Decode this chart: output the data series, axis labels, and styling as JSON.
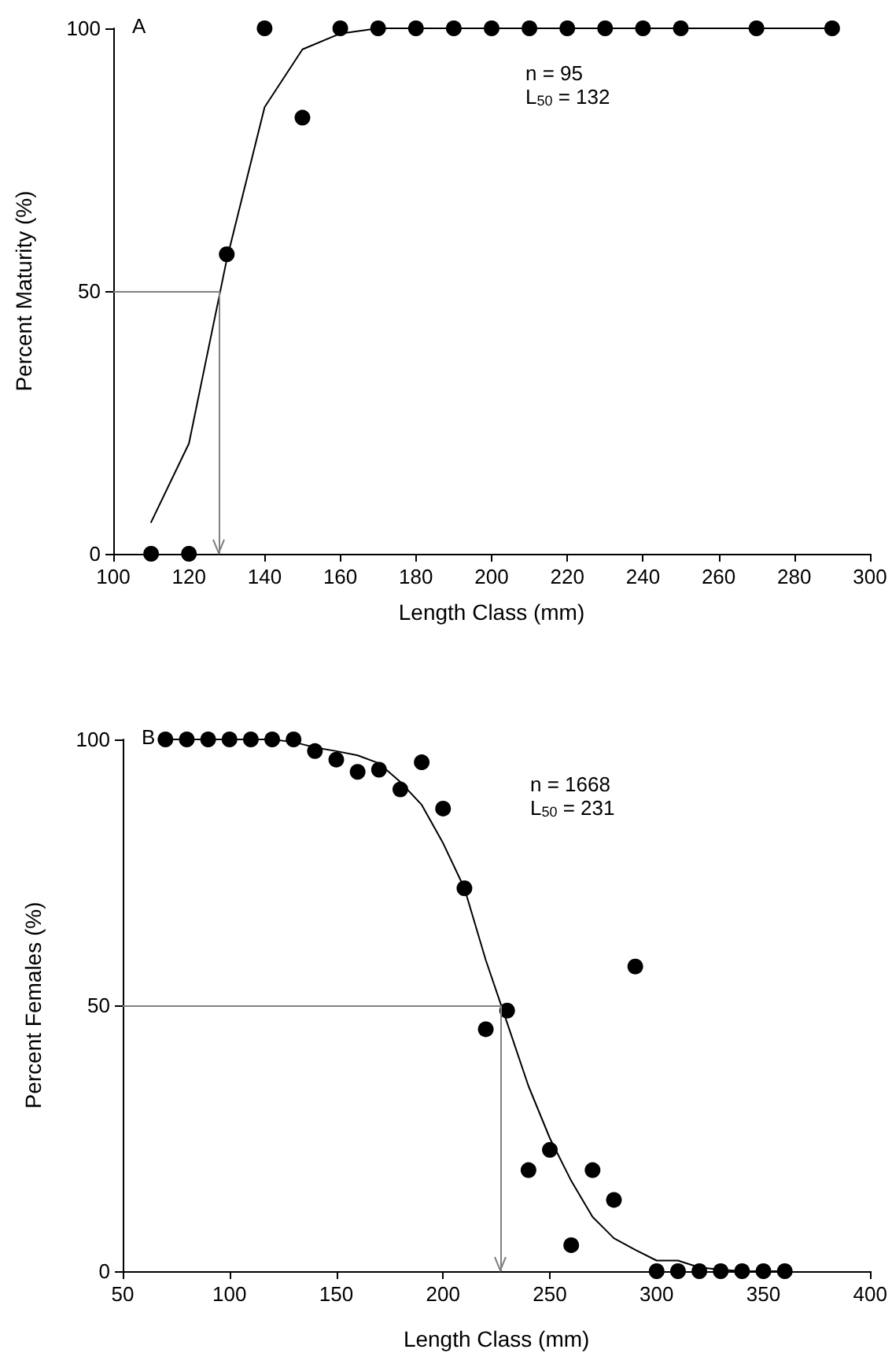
{
  "chart_data": [
    {
      "type": "scatter",
      "xlabel": "Length Class (mm)",
      "ylabel": "Percent Maturity (%)",
      "xlim": [
        100,
        300
      ],
      "xticks": [
        100,
        120,
        140,
        160,
        180,
        200,
        220,
        240,
        260,
        280,
        300
      ],
      "ylim": [
        0,
        100
      ],
      "yticks": [
        0,
        50,
        100
      ],
      "series": [
        {
          "marker": "circle",
          "color": "#000000",
          "x": [
            110,
            120,
            130,
            140,
            150,
            160,
            170,
            180,
            190,
            200,
            210,
            220,
            230,
            240,
            250,
            270,
            290
          ],
          "values": [
            0,
            0,
            57,
            100,
            83,
            100,
            100,
            100,
            100,
            100,
            100,
            100,
            100,
            100,
            100,
            100,
            100
          ]
        },
        {
          "type": "line",
          "marker": "none",
          "color": "#000000",
          "x": [
            110,
            120,
            130,
            140,
            150,
            160,
            170,
            180,
            190,
            200,
            210,
            220,
            230,
            240,
            250,
            270,
            290
          ],
          "values": [
            6,
            21,
            56,
            85,
            96,
            99,
            100,
            100,
            100,
            100,
            100,
            100,
            100,
            100,
            100,
            100,
            100
          ]
        }
      ],
      "ref_lines": [
        {
          "axis": "y",
          "value": 50,
          "color": "#808080"
        },
        {
          "axis": "x",
          "value": 128,
          "color": "#808080"
        }
      ],
      "annotations": [
        "A",
        "n = 95",
        "L$_{50}$ = 132"
      ]
    },
    {
      "type": "scatter",
      "xlabel": "Length Class (mm)",
      "ylabel": "Percent Females (%)",
      "xlim": [
        50,
        400
      ],
      "xticks": [
        50,
        100,
        150,
        200,
        250,
        300,
        350,
        400
      ],
      "ylim": [
        0,
        100
      ],
      "yticks": [
        0,
        50,
        100
      ],
      "series": [
        {
          "marker": "circle",
          "color": "#000000",
          "x": [
            70,
            80,
            90,
            100,
            110,
            120,
            130,
            140,
            150,
            160,
            170,
            180,
            190,
            200,
            210,
            220,
            230,
            240,
            250,
            260,
            270,
            280,
            290,
            300,
            310,
            320,
            330,
            340,
            350,
            360
          ],
          "values": [
            100,
            100,
            100,
            100,
            100,
            100,
            100,
            97.8,
            96.2,
            93.9,
            94.3,
            90.6,
            95.7,
            87,
            72,
            45.5,
            49,
            19,
            22.8,
            4.9,
            19,
            13.4,
            57.3,
            0,
            0,
            0,
            0,
            0,
            0,
            0
          ]
        },
        {
          "type": "line",
          "marker": "none",
          "color": "#000000",
          "x": [
            70,
            80,
            90,
            100,
            110,
            120,
            130,
            140,
            150,
            160,
            170,
            180,
            190,
            200,
            210,
            220,
            230,
            240,
            250,
            260,
            270,
            280,
            290,
            300,
            310,
            320,
            330,
            340,
            350,
            360
          ],
          "values": [
            100,
            100,
            100,
            100,
            100,
            100,
            99.5,
            98.5,
            97.8,
            97,
            95.5,
            92,
            87.7,
            80.5,
            72,
            58.5,
            46.7,
            34.8,
            25,
            17,
            10.2,
            6.2,
            4,
            2,
            2,
            0.7,
            0.3,
            0,
            0,
            0
          ]
        }
      ],
      "ref_lines": [
        {
          "axis": "y",
          "value": 50,
          "color": "#808080"
        },
        {
          "axis": "x",
          "value": 227,
          "color": "#808080"
        }
      ],
      "annotations": [
        "B",
        "n = 1668",
        "L$_{50}$ = 231"
      ]
    }
  ]
}
